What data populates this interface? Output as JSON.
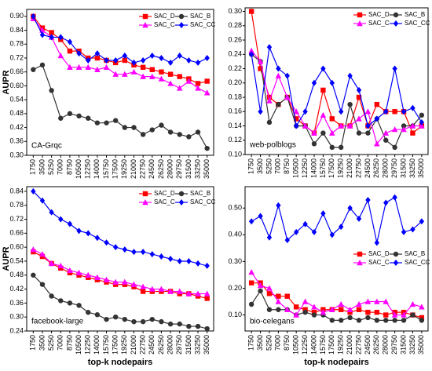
{
  "chart_data": [
    {
      "type": "line",
      "annotation": "CA-Grqc",
      "ylabel": "AUPR",
      "x": [
        1750,
        3500,
        5250,
        7000,
        8750,
        10500,
        12250,
        14000,
        15750,
        17500,
        19250,
        21000,
        22750,
        24500,
        26250,
        28000,
        29750,
        31500,
        33250,
        35000
      ],
      "xticks": [
        1750,
        3500,
        5250,
        7000,
        8750,
        10500,
        12250,
        14000,
        15750,
        17500,
        19250,
        21000,
        22750,
        24500,
        26250,
        28000,
        29750,
        31500,
        33250,
        35000
      ],
      "xlim": [
        500,
        36250
      ],
      "ylim": [
        0.3,
        0.93
      ],
      "yticks": [
        {
          "value": 0.3,
          "label": "0.30"
        },
        {
          "value": 0.36,
          "label": "0.36"
        },
        {
          "value": 0.42,
          "label": "0.42"
        },
        {
          "value": 0.48,
          "label": "0.48"
        },
        {
          "value": 0.54,
          "label": "0.54"
        },
        {
          "value": 0.6,
          "label": "0.60"
        },
        {
          "value": 0.66,
          "label": "0.66"
        },
        {
          "value": 0.72,
          "label": "0.72"
        },
        {
          "value": 0.78,
          "label": "0.78"
        },
        {
          "value": 0.84,
          "label": "0.84"
        },
        {
          "value": 0.9,
          "label": "0.90"
        }
      ],
      "legend": "upper right",
      "series": [
        {
          "name": "SAC_D",
          "color": "#ff0000",
          "marker": "square",
          "values": [
            0.9,
            0.85,
            0.83,
            0.8,
            0.75,
            0.75,
            0.72,
            0.72,
            0.71,
            0.7,
            0.71,
            0.69,
            0.68,
            0.67,
            0.66,
            0.65,
            0.64,
            0.63,
            0.61,
            0.62
          ]
        },
        {
          "name": "SAC_B",
          "color": "#333333",
          "marker": "circle",
          "values": [
            0.67,
            0.69,
            0.58,
            0.46,
            0.48,
            0.47,
            0.46,
            0.44,
            0.44,
            0.45,
            0.42,
            0.42,
            0.39,
            0.41,
            0.43,
            0.4,
            0.39,
            0.38,
            0.4,
            0.33
          ]
        },
        {
          "name": "SAC_C",
          "color": "#ff00ff",
          "marker": "triangle",
          "values": [
            0.89,
            0.84,
            0.81,
            0.73,
            0.68,
            0.68,
            0.68,
            0.67,
            0.68,
            0.65,
            0.65,
            0.66,
            0.64,
            0.64,
            0.63,
            0.61,
            0.59,
            0.62,
            0.59,
            0.57
          ]
        },
        {
          "name": "SAC_CC",
          "color": "#0000ff",
          "marker": "diamond",
          "values": [
            0.9,
            0.82,
            0.81,
            0.81,
            0.79,
            0.74,
            0.71,
            0.74,
            0.71,
            0.71,
            0.73,
            0.7,
            0.71,
            0.73,
            0.72,
            0.7,
            0.73,
            0.71,
            0.7,
            0.72
          ]
        }
      ]
    },
    {
      "type": "line",
      "annotation": "web-polblogs",
      "x": [
        1750,
        3500,
        5250,
        7000,
        8750,
        10500,
        12250,
        14000,
        15750,
        17500,
        19250,
        21000,
        22750,
        24500,
        26250,
        28000,
        29750,
        31500,
        33250,
        35000
      ],
      "xticks": [
        1750,
        3500,
        5250,
        7000,
        8750,
        10500,
        12250,
        14000,
        15750,
        17500,
        19250,
        21000,
        22750,
        24500,
        26250,
        28000,
        29750,
        31500,
        33250,
        35000
      ],
      "xlim": [
        500,
        36250
      ],
      "ylim": [
        0.1,
        0.305
      ],
      "yticks": [
        {
          "value": 0.1,
          "label": "0.10"
        },
        0.12,
        0.14,
        0.16,
        0.18,
        {
          "value": 0.2,
          "label": "0.20"
        },
        0.22,
        0.24,
        0.26,
        0.28,
        {
          "value": 0.3,
          "label": "0.30"
        }
      ],
      "legend": "upper right",
      "series": [
        {
          "name": "SAC_D",
          "color": "#ff0000",
          "marker": "square",
          "values": [
            0.3,
            0.22,
            0.18,
            0.17,
            0.18,
            0.15,
            0.14,
            0.13,
            0.19,
            0.15,
            0.14,
            0.14,
            0.18,
            0.14,
            0.17,
            0.16,
            0.16,
            0.16,
            0.13,
            0.14
          ]
        },
        {
          "name": "SAC_B",
          "color": "#333333",
          "marker": "circle",
          "values": [
            0.24,
            0.23,
            0.145,
            0.17,
            0.18,
            0.14,
            0.14,
            0.115,
            0.13,
            0.11,
            0.11,
            0.17,
            0.13,
            0.13,
            0.15,
            0.12,
            0.11,
            0.14,
            0.14,
            0.155
          ]
        },
        {
          "name": "SAC_C",
          "color": "#ff00ff",
          "marker": "triangle",
          "values": [
            0.245,
            0.23,
            0.175,
            0.21,
            0.18,
            0.16,
            0.14,
            0.13,
            0.155,
            0.13,
            0.14,
            0.14,
            0.15,
            0.16,
            0.115,
            0.13,
            0.135,
            0.135,
            0.14,
            0.14
          ]
        },
        {
          "name": "SAC_CC",
          "color": "#0000ff",
          "marker": "diamond",
          "values": [
            0.24,
            0.16,
            0.25,
            0.22,
            0.21,
            0.14,
            0.16,
            0.2,
            0.22,
            0.2,
            0.16,
            0.21,
            0.19,
            0.14,
            0.15,
            0.16,
            0.22,
            0.16,
            0.165,
            0.145
          ]
        }
      ]
    },
    {
      "type": "line",
      "annotation": "facebook-large",
      "ylabel": "AUPR",
      "xlabel": "top-k nodepairs",
      "x": [
        1750,
        3500,
        5250,
        7000,
        8750,
        10500,
        12250,
        14000,
        15750,
        17500,
        19250,
        21000,
        22750,
        24500,
        26250,
        28000,
        29750,
        31500,
        33250,
        35000
      ],
      "xticks": [
        1750,
        3500,
        5250,
        7000,
        8750,
        10500,
        12250,
        14000,
        15750,
        17500,
        19250,
        21000,
        22750,
        24500,
        26250,
        28000,
        29750,
        31500,
        33250,
        35000
      ],
      "xlim": [
        500,
        36250
      ],
      "ylim": [
        0.24,
        0.86
      ],
      "yticks": [
        0.24,
        {
          "value": 0.3,
          "label": "0.30"
        },
        0.36,
        0.42,
        0.48,
        0.54,
        {
          "value": 0.6,
          "label": "0.60"
        },
        0.66,
        0.72,
        0.78,
        0.84
      ],
      "legend": "upper right",
      "series": [
        {
          "name": "SAC_D",
          "color": "#ff0000",
          "marker": "square",
          "values": [
            0.58,
            0.56,
            0.53,
            0.51,
            0.49,
            0.48,
            0.47,
            0.46,
            0.45,
            0.44,
            0.44,
            0.43,
            0.41,
            0.41,
            0.41,
            0.41,
            0.4,
            0.4,
            0.39,
            0.38
          ]
        },
        {
          "name": "SAC_B",
          "color": "#333333",
          "marker": "circle",
          "values": [
            0.48,
            0.44,
            0.39,
            0.37,
            0.36,
            0.35,
            0.32,
            0.31,
            0.29,
            0.3,
            0.29,
            0.28,
            0.28,
            0.29,
            0.28,
            0.27,
            0.27,
            0.26,
            0.26,
            0.25
          ]
        },
        {
          "name": "SAC_C",
          "color": "#ff00ff",
          "marker": "triangle",
          "values": [
            0.59,
            0.57,
            0.53,
            0.52,
            0.5,
            0.49,
            0.48,
            0.47,
            0.46,
            0.45,
            0.45,
            0.44,
            0.43,
            0.42,
            0.42,
            0.41,
            0.41,
            0.4,
            0.4,
            0.4
          ]
        },
        {
          "name": "SAC_CC",
          "color": "#0000ff",
          "marker": "diamond",
          "values": [
            0.84,
            0.8,
            0.75,
            0.72,
            0.7,
            0.67,
            0.66,
            0.64,
            0.62,
            0.6,
            0.59,
            0.58,
            0.58,
            0.57,
            0.56,
            0.55,
            0.54,
            0.54,
            0.53,
            0.52
          ]
        }
      ]
    },
    {
      "type": "line",
      "annotation": "bio-celegans",
      "xlabel": "top-k nodepairs",
      "x": [
        1750,
        3500,
        5250,
        7000,
        8750,
        10500,
        12250,
        14000,
        15750,
        17500,
        19250,
        21000,
        22750,
        24500,
        26250,
        28000,
        29750,
        31500,
        33250,
        35000
      ],
      "xticks": [
        1750,
        3500,
        5250,
        7000,
        8750,
        10500,
        12250,
        14000,
        15750,
        17500,
        19250,
        21000,
        22750,
        24500,
        26250,
        28000,
        29750,
        31500,
        33250,
        35000
      ],
      "xlim": [
        500,
        36250
      ],
      "ylim": [
        0.04,
        0.58
      ],
      "yticks": [
        {
          "value": 0.1,
          "label": "0.10"
        },
        {
          "value": 0.2,
          "label": "0.20"
        },
        {
          "value": 0.3,
          "label": "0.30"
        },
        {
          "value": 0.4,
          "label": "0.40"
        },
        {
          "value": 0.5,
          "label": "0.50"
        }
      ],
      "legend": "center right",
      "series": [
        {
          "name": "SAC_D",
          "color": "#ff0000",
          "marker": "square",
          "values": [
            0.22,
            0.22,
            0.18,
            0.17,
            0.17,
            0.13,
            0.12,
            0.11,
            0.12,
            0.12,
            0.12,
            0.11,
            0.12,
            0.11,
            0.11,
            0.1,
            0.11,
            0.11,
            0.1,
            0.09
          ]
        },
        {
          "name": "SAC_B",
          "color": "#333333",
          "marker": "circle",
          "values": [
            0.14,
            0.19,
            0.12,
            0.12,
            0.12,
            0.1,
            0.11,
            0.1,
            0.1,
            0.08,
            0.08,
            0.09,
            0.08,
            0.09,
            0.08,
            0.08,
            0.08,
            0.08,
            0.1,
            0.08
          ]
        },
        {
          "name": "SAC_C",
          "color": "#ff00ff",
          "marker": "triangle",
          "values": [
            0.26,
            0.21,
            0.2,
            0.15,
            0.12,
            0.1,
            0.15,
            0.13,
            0.11,
            0.12,
            0.14,
            0.12,
            0.14,
            0.15,
            0.15,
            0.15,
            0.1,
            0.1,
            0.14,
            0.13
          ]
        },
        {
          "name": "SAC_CC",
          "color": "#0000ff",
          "marker": "diamond",
          "values": [
            0.45,
            0.47,
            0.39,
            0.51,
            0.38,
            0.41,
            0.44,
            0.41,
            0.48,
            0.4,
            0.43,
            0.5,
            0.46,
            0.53,
            0.37,
            0.52,
            0.54,
            0.41,
            0.42,
            0.45
          ]
        }
      ]
    }
  ]
}
